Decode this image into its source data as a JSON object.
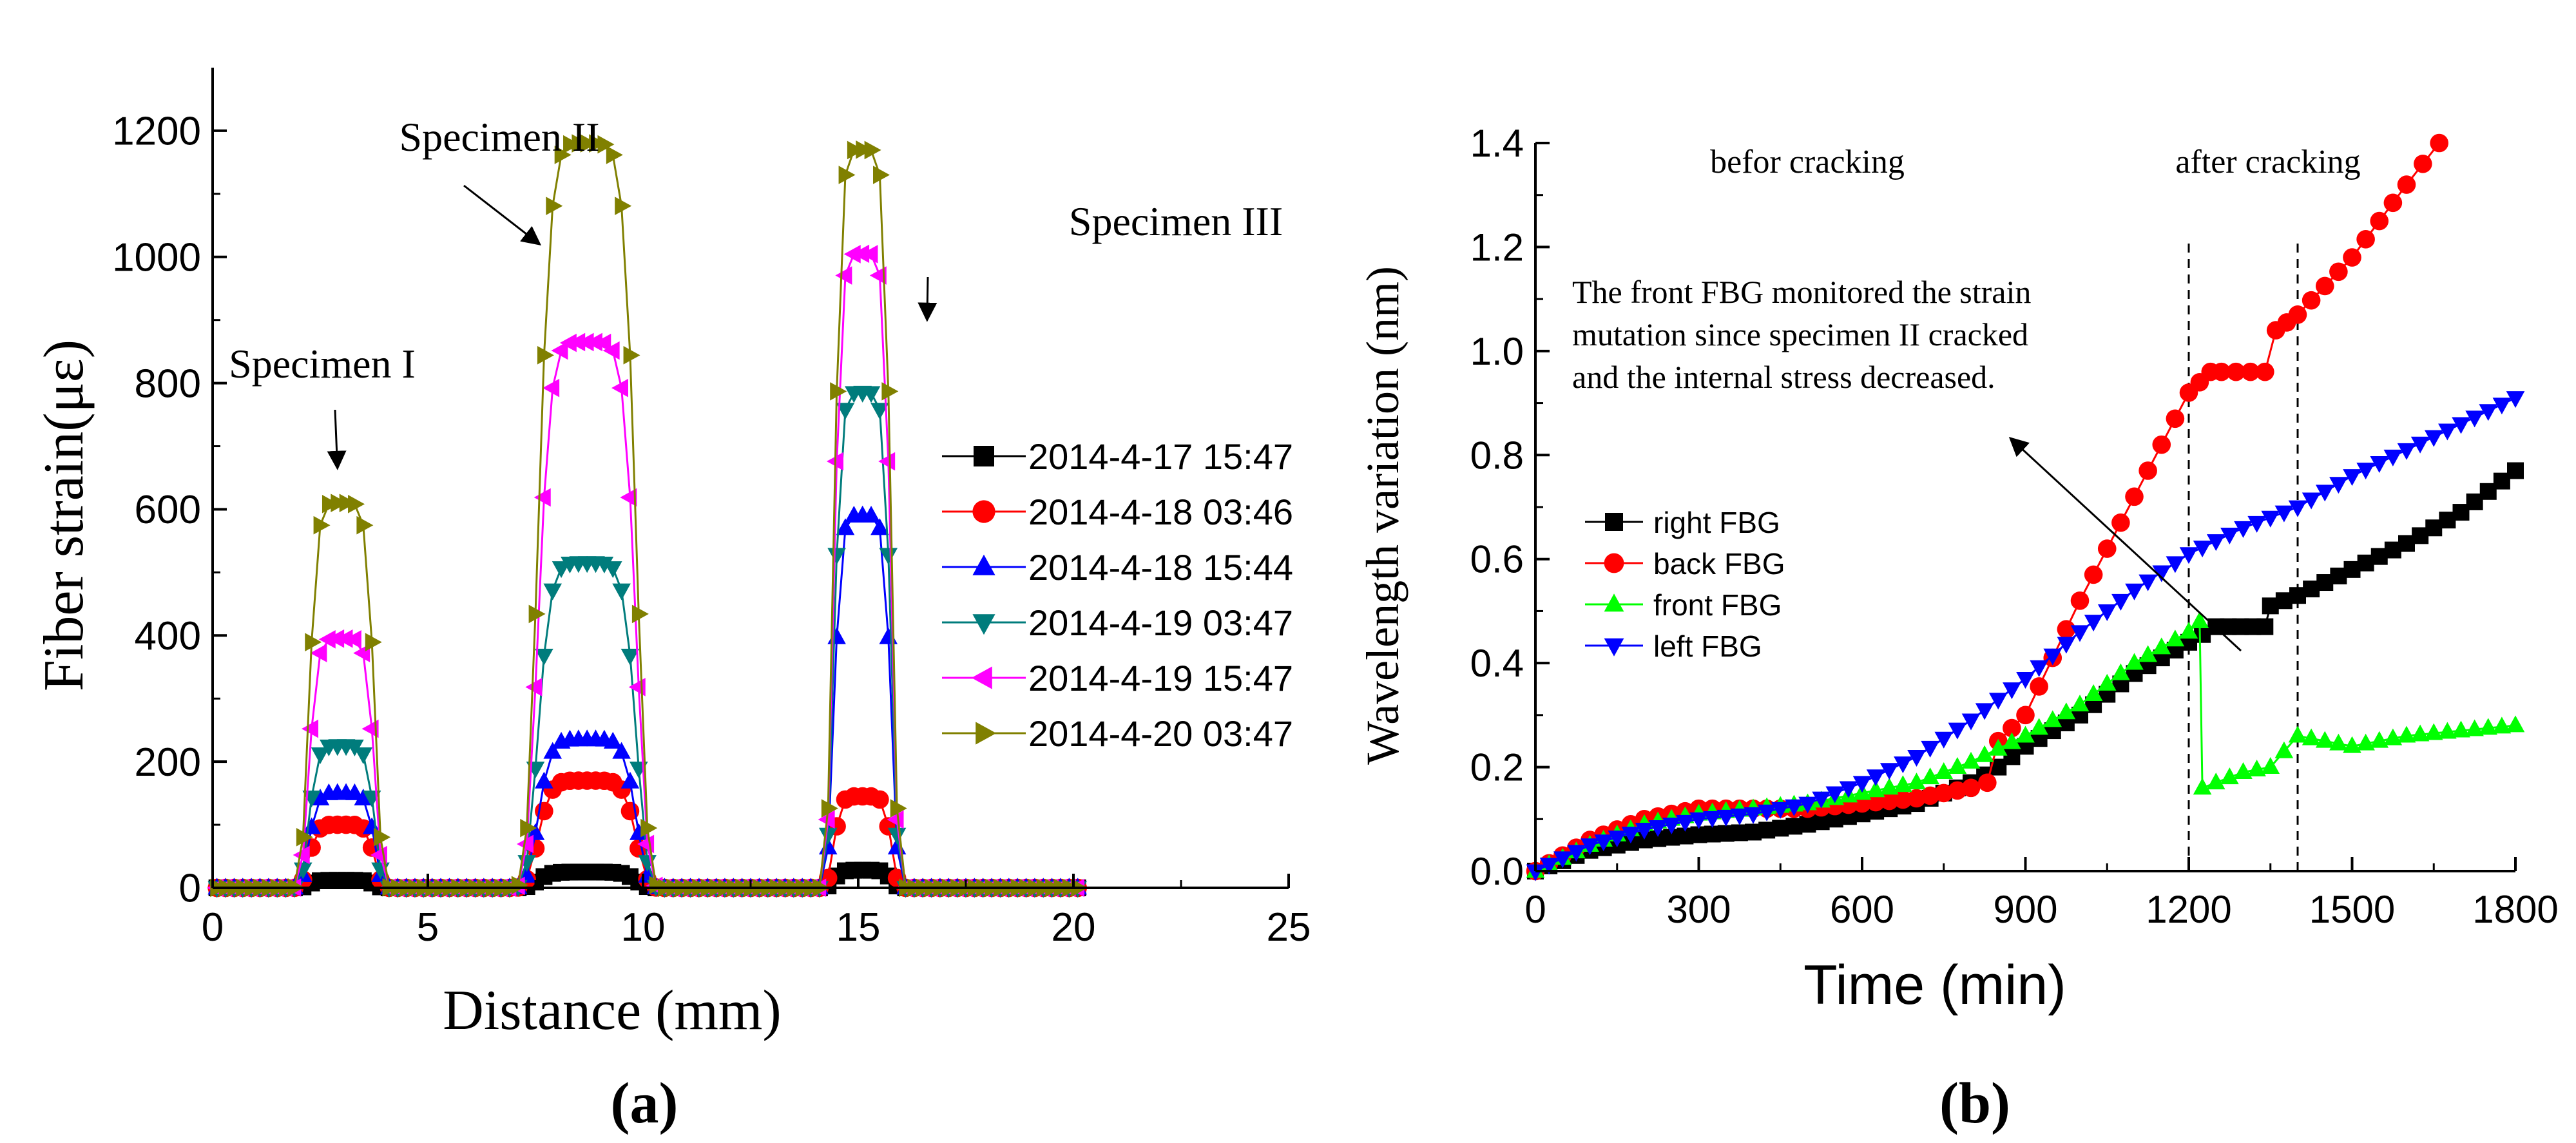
{
  "chart_data": [
    {
      "panel_label": "(a)",
      "type": "line",
      "title": "",
      "xlabel": "Distance (mm)",
      "ylabel": "Fiber strain(με)",
      "xlim": [
        0,
        25
      ],
      "ylim": [
        0,
        1300
      ],
      "xticks": [
        0,
        5,
        10,
        15,
        20,
        25
      ],
      "yticks": [
        0,
        200,
        400,
        600,
        800,
        1000,
        1200
      ],
      "x_tick_labels": [
        "0",
        "5",
        "10",
        "15",
        "20",
        "25"
      ],
      "y_tick_labels": [
        "0",
        "200",
        "400",
        "600",
        "800",
        "1000",
        "1200"
      ],
      "grid": false,
      "legend_position": "right",
      "peak_centers": [
        3,
        8.7,
        15.1
      ],
      "peak_widths": [
        0.8,
        1.2,
        0.7
      ],
      "series": [
        {
          "name": "2014-4-17  15:47",
          "color": "#000000",
          "marker": "square",
          "peaks": [
            12,
            25,
            28
          ]
        },
        {
          "name": "2014-4-18  03:46",
          "color": "#ff0000",
          "marker": "circle",
          "peaks": [
            100,
            170,
            145
          ]
        },
        {
          "name": "2014-4-18  15:44",
          "color": "#0000ff",
          "marker": "triangle-up",
          "peaks": [
            150,
            235,
            590
          ]
        },
        {
          "name": "2014-4-19  03:47",
          "color": "#007c7c",
          "marker": "triangle-down",
          "peaks": [
            225,
            515,
            785
          ]
        },
        {
          "name": "2014-4-19  15:47",
          "color": "#ff00ff",
          "marker": "triangle-left",
          "peaks": [
            395,
            865,
            1005
          ]
        },
        {
          "name": "2014-4-20  03:47",
          "color": "#808000",
          "marker": "triangle-right",
          "peaks": [
            610,
            1180,
            1170
          ]
        }
      ],
      "annotations": [
        {
          "text": "Specimen I",
          "arrow_x": 2.9,
          "arrow_y": 665
        },
        {
          "text": "Specimen II",
          "arrow_x": 7.6,
          "arrow_y": 1020
        },
        {
          "text": "Specimen III",
          "arrow_x": 16.6,
          "arrow_y": 900
        }
      ]
    },
    {
      "panel_label": "(b)",
      "type": "line",
      "title": "",
      "xlabel": "Time (min)",
      "ylabel": "Wavelength variation (nm)",
      "xlim": [
        0,
        1800
      ],
      "ylim": [
        0,
        1.4
      ],
      "xticks": [
        0,
        300,
        600,
        900,
        1200,
        1500,
        1800
      ],
      "yticks": [
        0,
        0.2,
        0.4,
        0.6,
        0.8,
        1.0,
        1.2,
        1.4
      ],
      "x_tick_labels": [
        "0",
        "300",
        "600",
        "900",
        "1200",
        "1500",
        "1800"
      ],
      "y_tick_labels": [
        "0.0",
        "0.2",
        "0.4",
        "0.6",
        "0.8",
        "1.0",
        "1.2",
        "1.4"
      ],
      "grid": false,
      "legend_position": "left",
      "vlines": [
        1200,
        1400
      ],
      "series": [
        {
          "name": "right  FBG",
          "color": "#000000",
          "marker": "square",
          "x": [
            0,
            100,
            200,
            300,
            400,
            500,
            600,
            700,
            800,
            850,
            900,
            1000,
            1100,
            1200,
            1250,
            1340,
            1350,
            1400,
            1500,
            1600,
            1700,
            1800
          ],
          "y": [
            0,
            0.04,
            0.06,
            0.07,
            0.075,
            0.09,
            0.11,
            0.13,
            0.17,
            0.2,
            0.24,
            0.3,
            0.38,
            0.44,
            0.47,
            0.47,
            0.51,
            0.53,
            0.58,
            0.63,
            0.69,
            0.77
          ]
        },
        {
          "name": "back  FBG",
          "color": "#ff0000",
          "marker": "circle",
          "x": [
            0,
            100,
            200,
            300,
            400,
            500,
            600,
            700,
            800,
            830,
            850,
            900,
            1000,
            1100,
            1200,
            1240,
            1260,
            1340,
            1360,
            1400,
            1500,
            1600,
            1660
          ],
          "y": [
            0,
            0.06,
            0.1,
            0.12,
            0.12,
            0.12,
            0.13,
            0.14,
            0.16,
            0.17,
            0.25,
            0.3,
            0.52,
            0.72,
            0.92,
            0.96,
            0.96,
            0.96,
            1.04,
            1.07,
            1.18,
            1.32,
            1.4
          ]
        },
        {
          "name": "front  FBG",
          "color": "#00ff00",
          "marker": "triangle-up",
          "x": [
            0,
            100,
            200,
            300,
            400,
            500,
            600,
            700,
            800,
            900,
            1000,
            1100,
            1200,
            1220,
            1225,
            1300,
            1350,
            1400,
            1500,
            1600,
            1700,
            1800
          ],
          "y": [
            0,
            0.05,
            0.09,
            0.11,
            0.12,
            0.13,
            0.15,
            0.17,
            0.21,
            0.26,
            0.32,
            0.4,
            0.46,
            0.48,
            0.16,
            0.19,
            0.2,
            0.26,
            0.24,
            0.26,
            0.27,
            0.28
          ]
        },
        {
          "name": "left     FBG",
          "color": "#0000ff",
          "marker": "triangle-down",
          "x": [
            0,
            100,
            200,
            300,
            400,
            500,
            600,
            700,
            800,
            900,
            1000,
            1100,
            1200,
            1300,
            1400,
            1500,
            1600,
            1700,
            1800
          ],
          "y": [
            0,
            0.05,
            0.08,
            0.1,
            0.11,
            0.13,
            0.17,
            0.22,
            0.29,
            0.37,
            0.46,
            0.54,
            0.61,
            0.66,
            0.7,
            0.76,
            0.81,
            0.86,
            0.91
          ]
        }
      ],
      "annotations": [
        {
          "text": "befor cracking",
          "x": 600,
          "y": 1.35
        },
        {
          "text": "after cracking",
          "x": 1450,
          "y": 1.35
        },
        {
          "lines": [
            "The front FBG monitored the strain",
            "mutation since specimen II cracked",
            "and the internal stress decreased."
          ],
          "x": 100,
          "y": 1.12
        }
      ]
    }
  ]
}
